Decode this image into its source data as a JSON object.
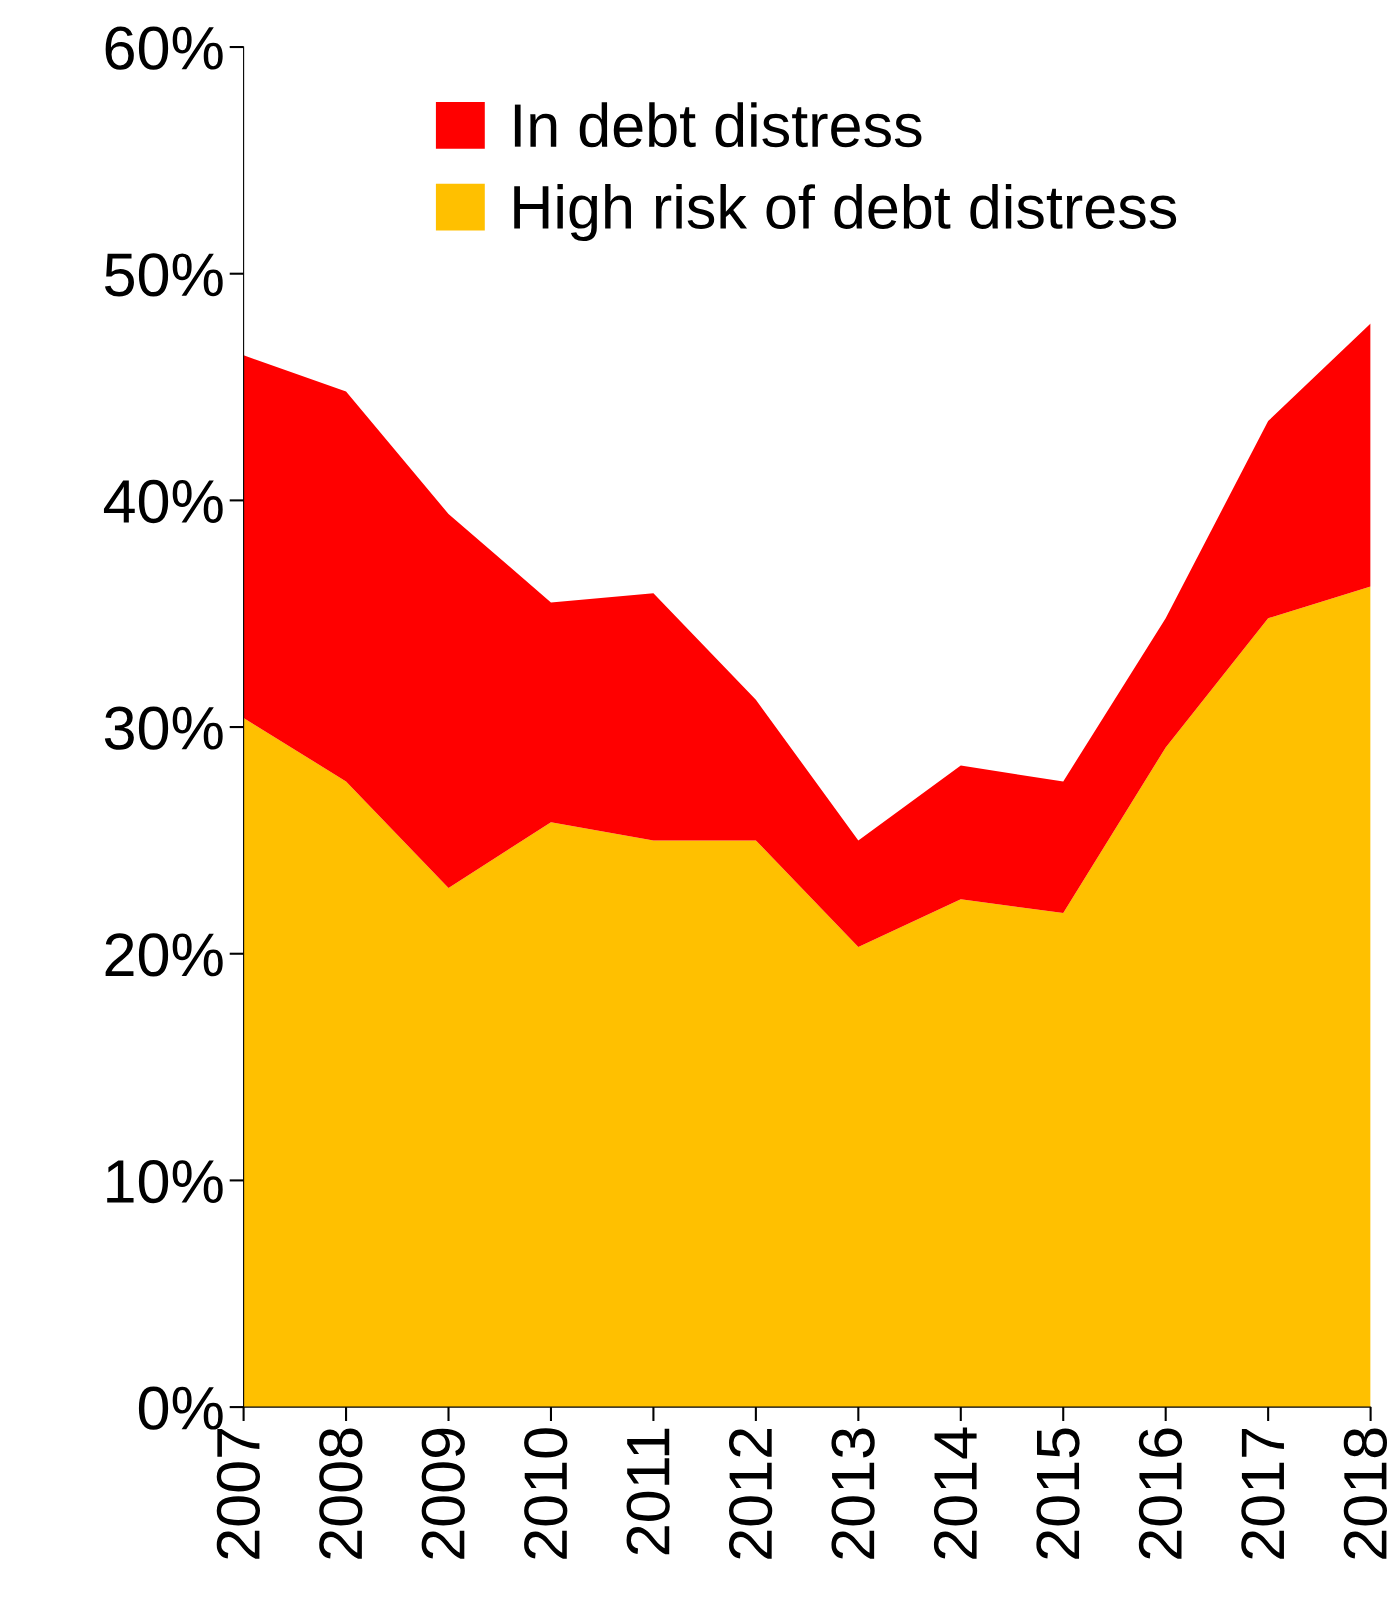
{
  "chart_data": {
    "type": "area",
    "stacked": true,
    "categories": [
      "2007",
      "2008",
      "2009",
      "2010",
      "2011",
      "2012",
      "2013",
      "2014",
      "2015",
      "2016",
      "2017",
      "2018"
    ],
    "series": [
      {
        "name": "High risk of debt distress",
        "color": "#ffc000",
        "values": [
          30.4,
          27.6,
          22.9,
          25.8,
          25.0,
          25.0,
          20.3,
          22.4,
          21.8,
          29.1,
          34.8,
          36.2
        ]
      },
      {
        "name": "In debt distress",
        "color": "#ff0000",
        "values": [
          16.0,
          17.2,
          16.5,
          9.7,
          10.9,
          6.2,
          4.7,
          5.9,
          5.8,
          5.7,
          8.7,
          11.6
        ]
      }
    ],
    "ylim": [
      0,
      60
    ],
    "yticks": [
      {
        "value": 0,
        "label": "0%"
      },
      {
        "value": 10,
        "label": "10%"
      },
      {
        "value": 20,
        "label": "20%"
      },
      {
        "value": 30,
        "label": "30%"
      },
      {
        "value": 40,
        "label": "40%"
      },
      {
        "value": 50,
        "label": "50%"
      },
      {
        "value": 60,
        "label": "60%"
      }
    ],
    "legend": "top",
    "grid": false
  }
}
